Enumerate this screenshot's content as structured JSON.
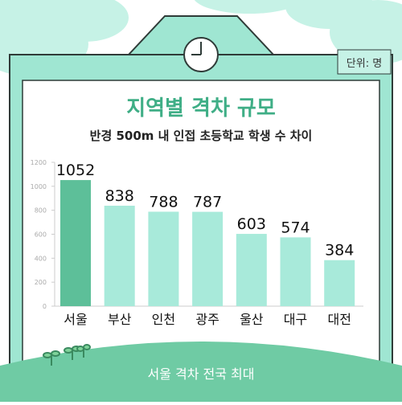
{
  "unit_label": "단위: 명",
  "banner_text": "서울 격차 전국 최대",
  "colors": {
    "accent": "#3fae86",
    "bar": "#a8eada",
    "bar_highlight": "#5dbf99",
    "frame": "#9fe6d2",
    "sky": "#c6f2e6"
  },
  "icons": [
    "clock-icon",
    "sprout-icon",
    "cloud-icon"
  ],
  "chart_data": {
    "type": "bar",
    "title": "지역별 격차 규모",
    "subtitle": "반경 500m 내 인접 초등학교 학생 수 차이",
    "xlabel": "",
    "ylabel": "",
    "categories": [
      "서울",
      "부산",
      "인천",
      "광주",
      "울산",
      "대구",
      "대전"
    ],
    "values": [
      1052,
      838,
      788,
      787,
      603,
      574,
      384
    ],
    "highlight_index": 0,
    "ylim": [
      0,
      1200
    ],
    "yticks": [
      0,
      200,
      400,
      600,
      800,
      1000,
      1200
    ],
    "grid": false,
    "legend": "none"
  }
}
